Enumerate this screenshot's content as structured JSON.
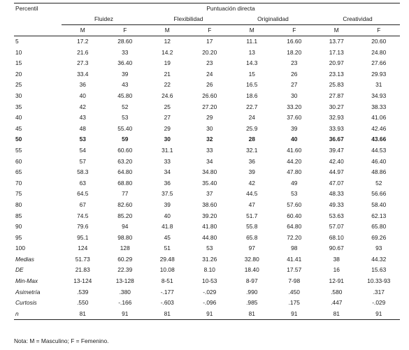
{
  "header": {
    "corner": "Percentil",
    "title": "Puntuación directa",
    "groups": [
      "Fluidez",
      "Flexibilidad",
      "Originalidad",
      "Creatividad"
    ],
    "sub": [
      "M",
      "F"
    ]
  },
  "rows": [
    {
      "label": "5",
      "v": [
        "17.2",
        "28.60",
        "12",
        "17",
        "11.1",
        "16.60",
        "13.77",
        "20.60"
      ]
    },
    {
      "label": "10",
      "v": [
        "21.6",
        "33",
        "14.2",
        "20.20",
        "13",
        "18.20",
        "17.13",
        "24.80"
      ]
    },
    {
      "label": "15",
      "v": [
        "27.3",
        "36.40",
        "19",
        "23",
        "14.3",
        "23",
        "20.97",
        "27.66"
      ]
    },
    {
      "label": "20",
      "v": [
        "33.4",
        "39",
        "21",
        "24",
        "15",
        "26",
        "23.13",
        "29.93"
      ]
    },
    {
      "label": "25",
      "v": [
        "36",
        "43",
        "22",
        "26",
        "16.5",
        "27",
        "25.83",
        "31"
      ]
    },
    {
      "label": "30",
      "v": [
        "40",
        "45.80",
        "24.6",
        "26.60",
        "18.6",
        "30",
        "27.87",
        "34.93"
      ]
    },
    {
      "label": "35",
      "v": [
        "42",
        "52",
        "25",
        "27.20",
        "22.7",
        "33.20",
        "30.27",
        "38.33"
      ]
    },
    {
      "label": "40",
      "v": [
        "43",
        "53",
        "27",
        "29",
        "24",
        "37.60",
        "32.93",
        "41.06"
      ]
    },
    {
      "label": "45",
      "v": [
        "48",
        "55.40",
        "29",
        "30",
        "25.9",
        "39",
        "33.93",
        "42.46"
      ]
    },
    {
      "label": "50",
      "v": [
        "53",
        "59",
        "30",
        "32",
        "28",
        "40",
        "36.67",
        "43.66"
      ],
      "bold": true
    },
    {
      "label": "55",
      "v": [
        "54",
        "60.60",
        "31.1",
        "33",
        "32.1",
        "41.60",
        "39.47",
        "44.53"
      ]
    },
    {
      "label": "60",
      "v": [
        "57",
        "63.20",
        "33",
        "34",
        "36",
        "44.20",
        "42.40",
        "46.40"
      ]
    },
    {
      "label": "65",
      "v": [
        "58.3",
        "64.80",
        "34",
        "34.80",
        "39",
        "47.80",
        "44.97",
        "48.86"
      ]
    },
    {
      "label": "70",
      "v": [
        "63",
        "68.80",
        "36",
        "35.40",
        "42",
        "49",
        "47.07",
        "52"
      ]
    },
    {
      "label": "75",
      "v": [
        "64.5",
        "77",
        "37.5",
        "37",
        "44.5",
        "53",
        "48.33",
        "56.66"
      ]
    },
    {
      "label": "80",
      "v": [
        "67",
        "82.60",
        "39",
        "38.60",
        "47",
        "57.60",
        "49.33",
        "58.40"
      ]
    },
    {
      "label": "85",
      "v": [
        "74.5",
        "85.20",
        "40",
        "39.20",
        "51.7",
        "60.40",
        "53.63",
        "62.13"
      ]
    },
    {
      "label": "90",
      "v": [
        "79.6",
        "94",
        "41.8",
        "41.80",
        "55.8",
        "64.80",
        "57.07",
        "65.80"
      ]
    },
    {
      "label": "95",
      "v": [
        "95.1",
        "98.80",
        "45",
        "44.80",
        "65.8",
        "72.20",
        "68.10",
        "69.26"
      ]
    },
    {
      "label": "100",
      "v": [
        "124",
        "128",
        "51",
        "53",
        "97",
        "98",
        "90.67",
        "93"
      ]
    },
    {
      "label": "Medias",
      "v": [
        "51.73",
        "60.29",
        "29.48",
        "31.26",
        "32.80",
        "41.41",
        "38",
        "44.32"
      ],
      "italic": true
    },
    {
      "label": "DE",
      "v": [
        "21.83",
        "22.39",
        "10.08",
        "8.10",
        "18.40",
        "17.57",
        "16",
        "15.63"
      ],
      "italic": true
    },
    {
      "label": "Min-Max",
      "v": [
        "13-124",
        "13-128",
        "8-51",
        "10-53",
        "8-97",
        "7-98",
        "12-91",
        "10.33-93"
      ],
      "italic": true
    },
    {
      "label": "Asimetría",
      "v": [
        ".539",
        ".380",
        "-.177",
        "-.029",
        ".990",
        ".450",
        ".580",
        ".317"
      ],
      "italic": true
    },
    {
      "label": "Curtosis",
      "v": [
        ".550",
        "-.166",
        "-.603",
        "-.096",
        ".985",
        ".175",
        ".447",
        "-.029"
      ],
      "italic": true
    },
    {
      "label": "n",
      "v": [
        "81",
        "91",
        "81",
        "91",
        "81",
        "91",
        "81",
        "91"
      ],
      "italic": true
    }
  ],
  "note": "Nota: M = Masculino; F = Femenino."
}
